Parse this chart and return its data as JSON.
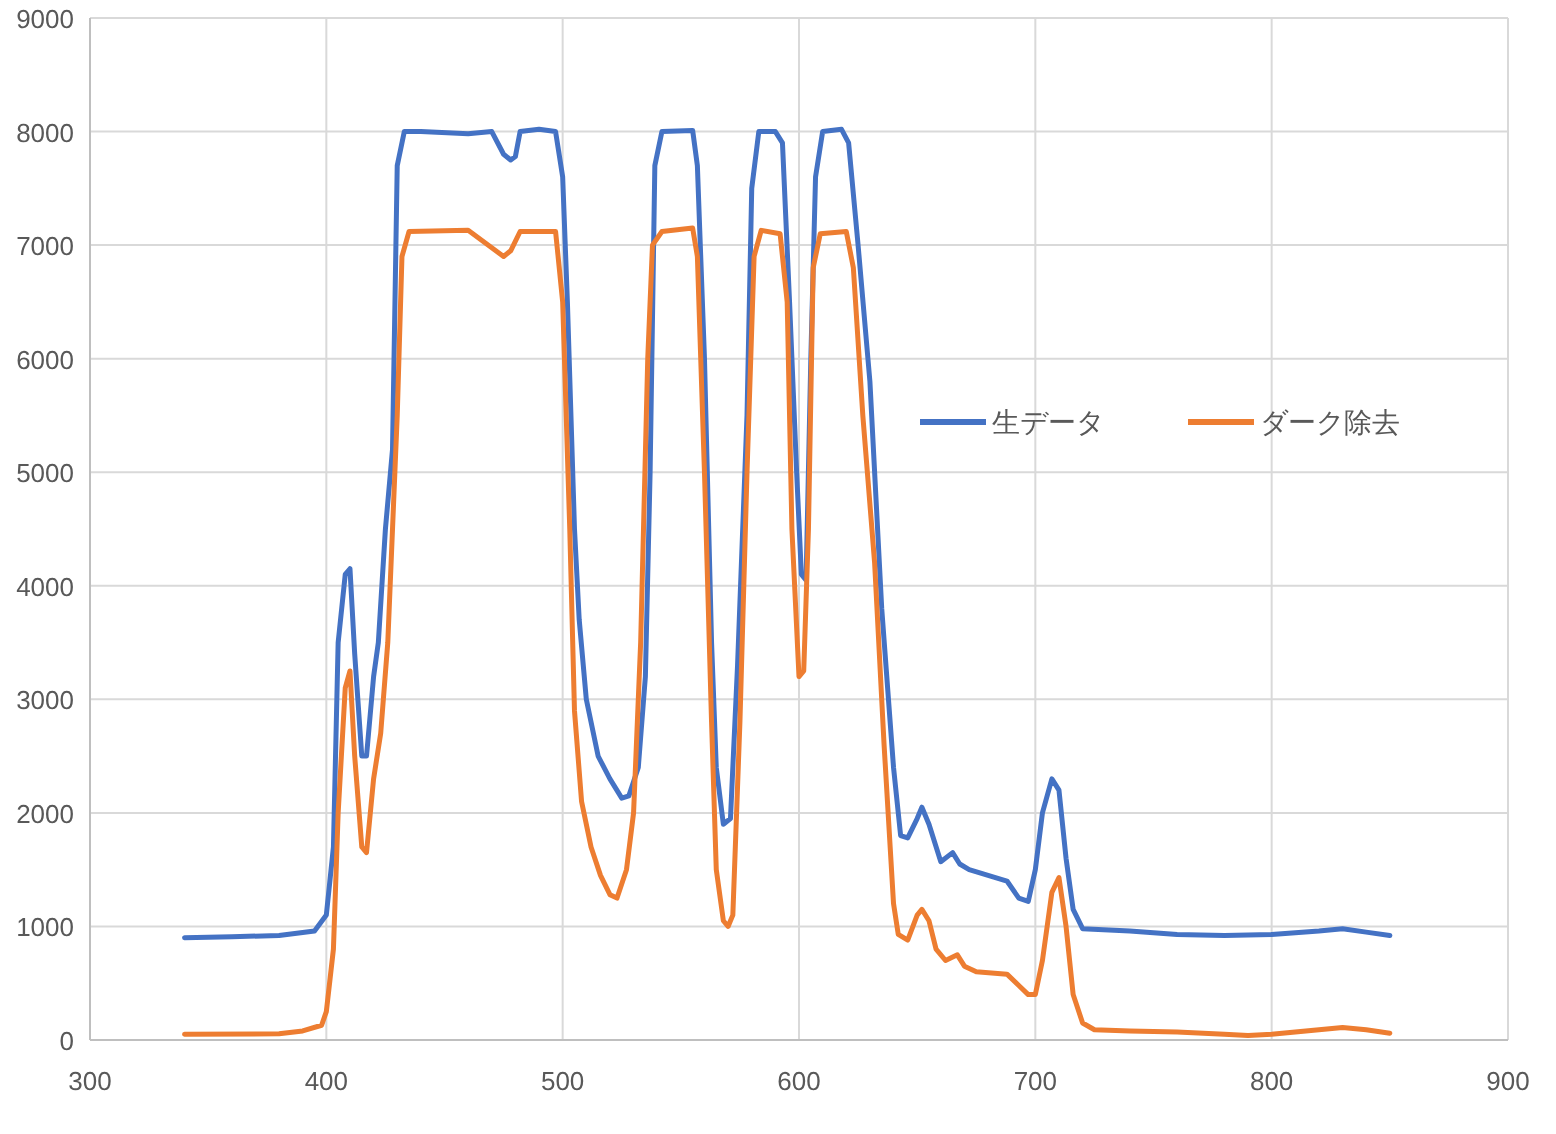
{
  "chart_data": {
    "type": "line",
    "xlim": [
      300,
      900
    ],
    "ylim": [
      0,
      9000
    ],
    "xticks": [
      300,
      400,
      500,
      600,
      700,
      800,
      900
    ],
    "yticks": [
      0,
      1000,
      2000,
      3000,
      4000,
      5000,
      6000,
      7000,
      8000,
      9000
    ],
    "grid": true,
    "legend": "right",
    "marker": "none",
    "line_style": "solid",
    "series": [
      {
        "name": "生データ",
        "color": "#4472c4",
        "x": [
          340,
          360,
          380,
          395,
          400,
          403,
          405,
          408,
          410,
          412,
          415,
          417,
          420,
          422,
          425,
          428,
          430,
          433,
          440,
          460,
          470,
          475,
          478,
          480,
          482,
          490,
          497,
          500,
          502,
          505,
          507,
          510,
          515,
          520,
          525,
          528,
          532,
          535,
          537,
          539,
          542,
          555,
          557,
          560,
          563,
          565,
          568,
          571,
          574,
          578,
          580,
          583,
          590,
          593,
          596,
          599,
          601,
          603,
          605,
          607,
          610,
          618,
          621,
          625,
          630,
          635,
          640,
          643,
          646,
          650,
          652,
          655,
          660,
          665,
          668,
          672,
          680,
          688,
          693,
          697,
          700,
          703,
          707,
          710,
          713,
          716,
          720,
          740,
          760,
          780,
          800,
          820,
          830,
          840,
          850
        ],
        "values": [
          900,
          910,
          920,
          960,
          1100,
          1700,
          3500,
          4100,
          4150,
          3400,
          2500,
          2500,
          3200,
          3500,
          4500,
          5200,
          7700,
          8000,
          8000,
          7980,
          8000,
          7800,
          7750,
          7780,
          8000,
          8020,
          8000,
          7600,
          6500,
          4500,
          3700,
          3000,
          2500,
          2300,
          2130,
          2150,
          2400,
          3200,
          5000,
          7700,
          8000,
          8010,
          7700,
          6000,
          3500,
          2400,
          1900,
          1950,
          3300,
          5500,
          7500,
          8000,
          8000,
          7900,
          6500,
          5000,
          4100,
          4050,
          6000,
          7600,
          8000,
          8020,
          7900,
          7000,
          5800,
          3800,
          2400,
          1800,
          1780,
          1950,
          2050,
          1900,
          1570,
          1650,
          1550,
          1500,
          1450,
          1400,
          1250,
          1220,
          1500,
          2000,
          2300,
          2200,
          1600,
          1150,
          980,
          960,
          930,
          920,
          930,
          960,
          980,
          950,
          920
        ]
      },
      {
        "name": "ダーク除去",
        "color": "#ed7d31",
        "x": [
          340,
          380,
          390,
          398,
          400,
          403,
          405,
          408,
          410,
          412,
          415,
          417,
          420,
          423,
          426,
          430,
          432,
          435,
          460,
          475,
          478,
          482,
          497,
          500,
          503,
          505,
          508,
          512,
          516,
          520,
          523,
          527,
          530,
          533,
          536,
          538,
          542,
          555,
          557,
          560,
          563,
          565,
          568,
          570,
          572,
          575,
          578,
          581,
          584,
          592,
          595,
          597,
          600,
          602,
          604,
          606,
          609,
          620,
          623,
          627,
          632,
          636,
          640,
          642,
          646,
          650,
          652,
          655,
          658,
          662,
          667,
          670,
          675,
          688,
          693,
          697,
          700,
          703,
          707,
          710,
          713,
          716,
          720,
          725,
          740,
          760,
          780,
          790,
          800,
          820,
          830,
          840,
          850
        ],
        "values": [
          50,
          55,
          80,
          130,
          250,
          800,
          2000,
          3100,
          3250,
          2500,
          1700,
          1650,
          2300,
          2700,
          3500,
          5500,
          6900,
          7120,
          7130,
          6900,
          6950,
          7120,
          7120,
          6500,
          4500,
          2900,
          2100,
          1700,
          1450,
          1280,
          1250,
          1500,
          2000,
          3500,
          6000,
          7000,
          7120,
          7150,
          6900,
          5000,
          2800,
          1500,
          1050,
          1000,
          1100,
          2800,
          5000,
          6900,
          7130,
          7100,
          6500,
          4500,
          3200,
          3250,
          4500,
          6800,
          7100,
          7120,
          6800,
          5500,
          4200,
          2600,
          1200,
          930,
          880,
          1100,
          1150,
          1050,
          800,
          700,
          750,
          650,
          600,
          580,
          480,
          400,
          400,
          700,
          1300,
          1430,
          1000,
          400,
          150,
          90,
          80,
          70,
          50,
          40,
          50,
          90,
          110,
          90,
          60
        ]
      }
    ]
  }
}
